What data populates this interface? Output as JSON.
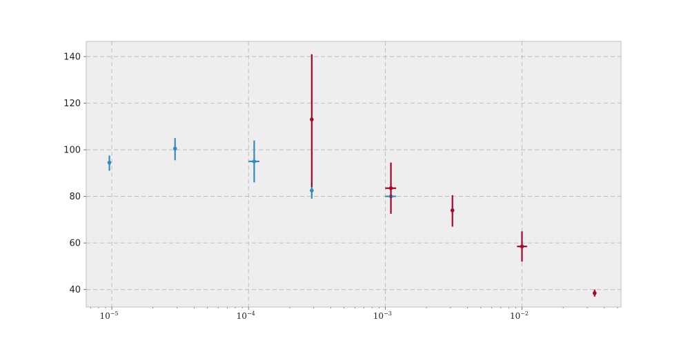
{
  "chart_data": {
    "type": "scatter",
    "title": "",
    "xlabel": "",
    "ylabel": "",
    "xscale": "log",
    "xlim": [
      6.5e-06,
      0.053
    ],
    "ylim": [
      32.5,
      146.5
    ],
    "grid": true,
    "legend": "none",
    "background": "#EEEEEE",
    "y_ticks": [
      40,
      60,
      80,
      100,
      120,
      140
    ],
    "x_ticks": [
      {
        "value": 1e-05,
        "base": "10",
        "exp": "−5"
      },
      {
        "value": 0.0001,
        "base": "10",
        "exp": "−4"
      },
      {
        "value": 0.001,
        "base": "10",
        "exp": "−3"
      },
      {
        "value": 0.01,
        "base": "10",
        "exp": "−2"
      }
    ],
    "series": [
      {
        "color": "#348ABD",
        "points": [
          {
            "x": 9.6e-06,
            "y": 94.5,
            "xerr": [
              9.6e-06,
              9.6e-06
            ],
            "yerr": [
              91,
              97.5
            ]
          },
          {
            "x": 2.9e-05,
            "y": 100.5,
            "xerr": [
              2.9e-05,
              2.9e-05
            ],
            "yerr": [
              95.5,
              105
            ]
          },
          {
            "x": 0.00011,
            "y": 95,
            "xerr": [
              0.0001,
              0.00012
            ],
            "yerr": [
              86,
              104
            ]
          },
          {
            "x": 0.00029,
            "y": 82.5,
            "xerr": [
              0.00029,
              0.00029
            ],
            "yerr": [
              79,
              86
            ]
          },
          {
            "x": 0.0011,
            "y": 80,
            "xerr": [
              0.001,
              0.0012
            ],
            "yerr": [
              80,
              80
            ]
          }
        ]
      },
      {
        "color": "#A60628",
        "points": [
          {
            "x": 0.00029,
            "y": 113,
            "xerr": [
              0.00029,
              0.00029
            ],
            "yerr": [
              84,
              141
            ]
          },
          {
            "x": 0.0011,
            "y": 83.5,
            "xerr": [
              0.001,
              0.0012
            ],
            "yerr": [
              72.5,
              94.5
            ]
          },
          {
            "x": 0.0031,
            "y": 74,
            "xerr": [
              0.0031,
              0.0031
            ],
            "yerr": [
              67,
              80.5
            ]
          },
          {
            "x": 0.01,
            "y": 58.5,
            "xerr": [
              0.0092,
              0.0109
            ],
            "yerr": [
              52,
              65
            ]
          },
          {
            "x": 0.034,
            "y": 38.5,
            "xerr": [
              0.034,
              0.034
            ],
            "yerr": [
              37,
              40
            ]
          }
        ]
      }
    ]
  }
}
